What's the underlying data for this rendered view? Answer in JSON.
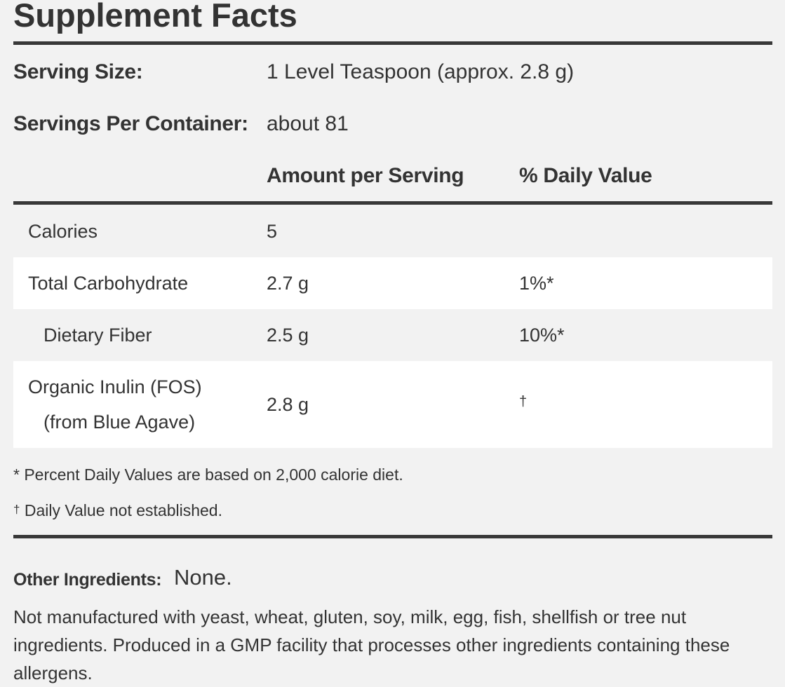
{
  "title": "Supplement Facts",
  "serving": {
    "size_label": "Serving Size:",
    "size_value": "1 Level Teaspoon (approx. 2.8 g)",
    "per_container_label": "Servings Per Container:",
    "per_container_value": "about 81"
  },
  "columns": {
    "amount": "Amount per Serving",
    "daily_value": "% Daily Value"
  },
  "rows": [
    {
      "name": "Calories",
      "amount": "5",
      "dv": ""
    },
    {
      "name": "Total Carbohydrate",
      "amount": "2.7 g",
      "dv": "1%*"
    },
    {
      "name": "Dietary Fiber",
      "amount": "2.5 g",
      "dv": "10%*"
    },
    {
      "name": "Organic Inulin (FOS)",
      "name_line2": "(from Blue Agave)",
      "amount": "2.8 g",
      "dv": "†"
    }
  ],
  "footnotes": {
    "percent": "* Percent Daily Values are based on 2,000 calorie diet.",
    "dagger_symbol": "†",
    "dagger_text": " Daily Value not established."
  },
  "other_ingredients": {
    "label": "Other Ingredients:",
    "value": "None."
  },
  "allergen_statement": "Not manufactured with yeast, wheat, gluten, soy, milk, egg, fish, shellfish or tree nut ingredients. Produced in a GMP facility that processes other ingredients containing these allergens."
}
